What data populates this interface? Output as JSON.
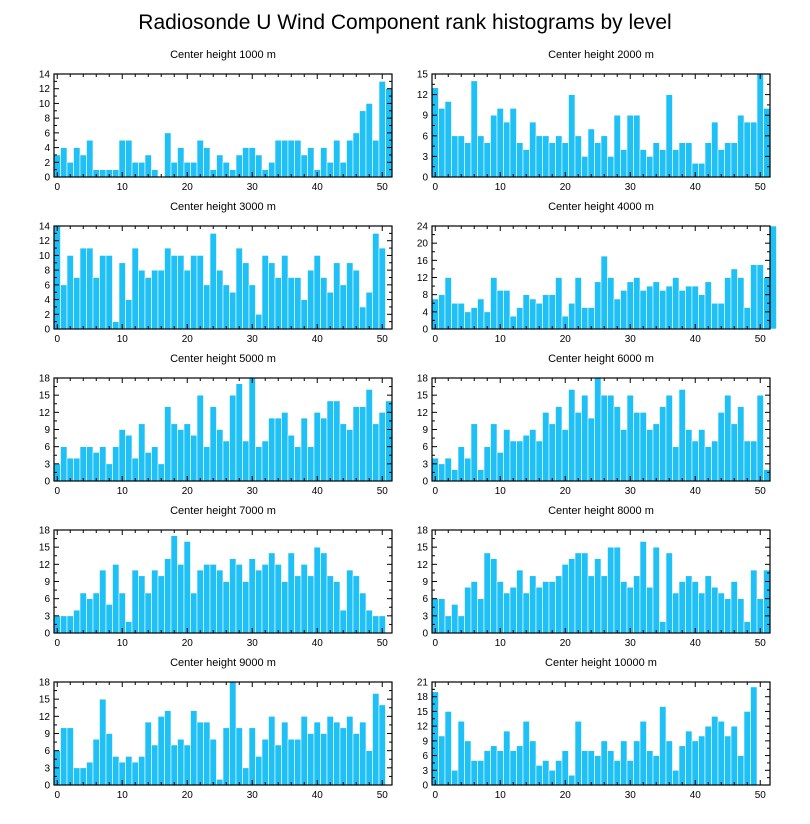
{
  "figure_title": "Radiosonde U Wind Component rank histograms by level",
  "colors": {
    "bar": "#1ec0f5",
    "bar_edge": "#ffffff",
    "axes": "#000000",
    "background": "#ffffff"
  },
  "chart_data": [
    {
      "type": "bar",
      "title": "Center height 1000 m",
      "x_start": 0,
      "xlim": [
        -0.5,
        51.5
      ],
      "xticks": [
        0,
        10,
        20,
        30,
        40,
        50
      ],
      "ylim": [
        0,
        14
      ],
      "yticks": [
        0,
        2,
        4,
        6,
        8,
        10,
        12,
        14
      ],
      "values": [
        3,
        4,
        2,
        4,
        3,
        5,
        1,
        1,
        1,
        1,
        5,
        5,
        2,
        2,
        3,
        1,
        0,
        6,
        2,
        4,
        2,
        2,
        5,
        4,
        1,
        3,
        2,
        1,
        3,
        4,
        4,
        3,
        1,
        2,
        5,
        5,
        5,
        5,
        3,
        4,
        1,
        4,
        2,
        5,
        2,
        5,
        6,
        9,
        10,
        5,
        13,
        12
      ]
    },
    {
      "type": "bar",
      "title": "Center height 2000 m",
      "x_start": 0,
      "xlim": [
        -0.5,
        51.5
      ],
      "xticks": [
        0,
        10,
        20,
        30,
        40,
        50
      ],
      "ylim": [
        0,
        15
      ],
      "yticks": [
        0,
        3,
        6,
        9,
        12,
        15
      ],
      "values": [
        13,
        10,
        11,
        6,
        6,
        5,
        14,
        6,
        5,
        9,
        10,
        8,
        10,
        5,
        4,
        8,
        6,
        6,
        5,
        6,
        5,
        12,
        6,
        3,
        7,
        5,
        6,
        3,
        9,
        4,
        9,
        9,
        4,
        3,
        5,
        4,
        12,
        4,
        5,
        5,
        2,
        2,
        5,
        8,
        4,
        5,
        5,
        9,
        8,
        8,
        15,
        10
      ]
    },
    {
      "type": "bar",
      "title": "Center height 3000 m",
      "x_start": 0,
      "xlim": [
        -0.5,
        51.5
      ],
      "xticks": [
        0,
        10,
        20,
        30,
        40,
        50
      ],
      "ylim": [
        0,
        14
      ],
      "yticks": [
        0,
        2,
        4,
        6,
        8,
        10,
        12,
        14
      ],
      "values": [
        14,
        6,
        10,
        7,
        11,
        11,
        7,
        10,
        10,
        1,
        9,
        4,
        11,
        8,
        7,
        8,
        8,
        11,
        10,
        10,
        8,
        10,
        10,
        6,
        13,
        8,
        6,
        5,
        11,
        9,
        6,
        2,
        10,
        9,
        7,
        10,
        7,
        7,
        4,
        8,
        10,
        7,
        5,
        9,
        6,
        9,
        8,
        3,
        5,
        13,
        11
      ]
    },
    {
      "type": "bar",
      "title": "Center height 4000 m",
      "x_start": 0,
      "xlim": [
        -0.5,
        51.5
      ],
      "xticks": [
        0,
        10,
        20,
        30,
        40,
        50
      ],
      "ylim": [
        0,
        24
      ],
      "yticks": [
        0,
        4,
        8,
        12,
        16,
        20,
        24
      ],
      "values": [
        7,
        8,
        12,
        6,
        6,
        4,
        5,
        7,
        4,
        12,
        9,
        9,
        3,
        5,
        8,
        7,
        6,
        8,
        8,
        12,
        3,
        6,
        12,
        5,
        5,
        11,
        17,
        12,
        7,
        9,
        11,
        12,
        9,
        10,
        11,
        9,
        10,
        12,
        9,
        10,
        10,
        8,
        11,
        6,
        6,
        12,
        14,
        12,
        5,
        15,
        15,
        12,
        24
      ]
    },
    {
      "type": "bar",
      "title": "Center height 5000 m",
      "x_start": 0,
      "xlim": [
        -0.5,
        51.5
      ],
      "xticks": [
        0,
        10,
        20,
        30,
        40,
        50
      ],
      "ylim": [
        0,
        18
      ],
      "yticks": [
        0,
        3,
        6,
        9,
        12,
        15,
        18
      ],
      "values": [
        3,
        6,
        4,
        4,
        6,
        6,
        5,
        6,
        3,
        6,
        9,
        8,
        4,
        10,
        5,
        6,
        3,
        13,
        10,
        9,
        10,
        8,
        15,
        6,
        13,
        9,
        7,
        15,
        17,
        7,
        18,
        6,
        7,
        11,
        11,
        12,
        8,
        6,
        11,
        6,
        12,
        11,
        14,
        14,
        10,
        9,
        13,
        13,
        16,
        10,
        12,
        14
      ]
    },
    {
      "type": "bar",
      "title": "Center height 6000 m",
      "x_start": 0,
      "xlim": [
        -0.5,
        51.5
      ],
      "xticks": [
        0,
        10,
        20,
        30,
        40,
        50
      ],
      "ylim": [
        0,
        18
      ],
      "yticks": [
        0,
        3,
        6,
        9,
        12,
        15,
        18
      ],
      "values": [
        4,
        3,
        4,
        2,
        6,
        4,
        10,
        2,
        6,
        10,
        5,
        9,
        7,
        7,
        8,
        9,
        7,
        12,
        10,
        13,
        9,
        16,
        12,
        15,
        11,
        18,
        15,
        15,
        13,
        9,
        15,
        12,
        12,
        9,
        10,
        13,
        15,
        6,
        16,
        9,
        7,
        9,
        6,
        7,
        12,
        15,
        10,
        13,
        7,
        7,
        15,
        2
      ]
    },
    {
      "type": "bar",
      "title": "Center height 7000 m",
      "x_start": 0,
      "xlim": [
        -0.5,
        51.5
      ],
      "xticks": [
        0,
        10,
        20,
        30,
        40,
        50
      ],
      "ylim": [
        0,
        18
      ],
      "yticks": [
        0,
        3,
        6,
        9,
        12,
        15,
        18
      ],
      "values": [
        3,
        3,
        3,
        4,
        7,
        6,
        7,
        11,
        5,
        12,
        7,
        2,
        11,
        10,
        7,
        11,
        10,
        13,
        17,
        12,
        16,
        7,
        11,
        12,
        12,
        11,
        9,
        13,
        12,
        9,
        13,
        11,
        12,
        14,
        12,
        9,
        14,
        10,
        12,
        10,
        15,
        14,
        10,
        9,
        4,
        11,
        10,
        7,
        4,
        3,
        3
      ]
    },
    {
      "type": "bar",
      "title": "Center height 8000 m",
      "x_start": 0,
      "xlim": [
        -0.5,
        51.5
      ],
      "xticks": [
        0,
        10,
        20,
        30,
        40,
        50
      ],
      "ylim": [
        0,
        18
      ],
      "yticks": [
        0,
        3,
        6,
        9,
        12,
        15,
        18
      ],
      "values": [
        6,
        6,
        3,
        5,
        3,
        8,
        9,
        6,
        14,
        13,
        9,
        7,
        8,
        11,
        7,
        10,
        8,
        9,
        9,
        10,
        12,
        13,
        14,
        14,
        10,
        13,
        10,
        15,
        15,
        9,
        8,
        10,
        16,
        8,
        15,
        2,
        14,
        7,
        9,
        10,
        9,
        7,
        10,
        8,
        7,
        6,
        9,
        6,
        2,
        11,
        6,
        11
      ]
    },
    {
      "type": "bar",
      "title": "Center height 9000 m",
      "x_start": 0,
      "xlim": [
        -0.5,
        51.5
      ],
      "xticks": [
        0,
        10,
        20,
        30,
        40,
        50
      ],
      "ylim": [
        0,
        18
      ],
      "yticks": [
        0,
        3,
        6,
        9,
        12,
        15,
        18
      ],
      "values": [
        6,
        10,
        10,
        3,
        3,
        4,
        8,
        15,
        9,
        5,
        4,
        5,
        4,
        5,
        11,
        7,
        12,
        13,
        7,
        8,
        7,
        13,
        11,
        11,
        8,
        1,
        10,
        18,
        10,
        3,
        10,
        5,
        8,
        12,
        7,
        11,
        8,
        8,
        12,
        9,
        11,
        9,
        12,
        11,
        10,
        12,
        9,
        11,
        6,
        16,
        14
      ]
    },
    {
      "type": "bar",
      "title": "Center height 10000 m",
      "x_start": 0,
      "xlim": [
        -0.5,
        51.5
      ],
      "xticks": [
        0,
        10,
        20,
        30,
        40,
        50
      ],
      "ylim": [
        0,
        21
      ],
      "yticks": [
        0,
        3,
        6,
        9,
        12,
        15,
        18,
        21
      ],
      "values": [
        19,
        10,
        15,
        3,
        13,
        9,
        5,
        5,
        7,
        8,
        7,
        11,
        7,
        8,
        13,
        9,
        4,
        5,
        3,
        5,
        7,
        2,
        13,
        7,
        7,
        6,
        9,
        7,
        5,
        9,
        5,
        9,
        13,
        7,
        6,
        16,
        9,
        3,
        8,
        11,
        9,
        10,
        12,
        14,
        13,
        10,
        12,
        6,
        15,
        20
      ]
    }
  ]
}
